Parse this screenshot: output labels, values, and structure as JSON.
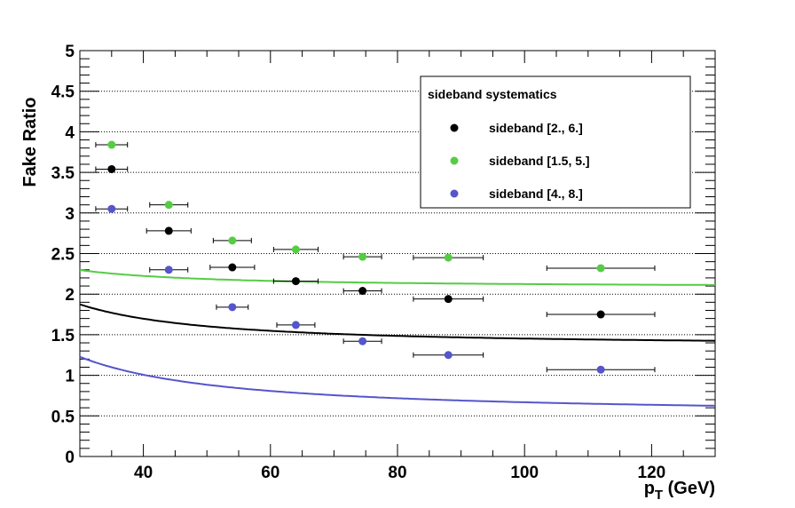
{
  "chart_data": {
    "type": "scatter",
    "title": "",
    "xlabel": "p_T (GeV)",
    "xlabel_main": "p",
    "xlabel_sub": "T",
    "xlabel_unit": " (GeV)",
    "ylabel": "Fake Ratio",
    "xlim": [
      30,
      130
    ],
    "ylim": [
      0,
      5
    ],
    "x_ticks": [
      40,
      60,
      80,
      100,
      120
    ],
    "y_ticks": [
      0,
      0.5,
      1,
      1.5,
      2,
      2.5,
      3,
      3.5,
      4,
      4.5,
      5
    ],
    "y_tick_labels": [
      "0",
      "0.5",
      "1",
      "1.5",
      "2",
      "2.5",
      "3",
      "3.5",
      "4",
      "4.5",
      "5"
    ],
    "x_tick_labels": [
      "40",
      "60",
      "80",
      "100",
      "120"
    ],
    "grid": "horizontal-dotted",
    "legend": {
      "title": "sideband systematics",
      "placement": "top-right"
    },
    "series": [
      {
        "name": "sideband [2., 6.]",
        "color": "#000000",
        "points": [
          {
            "x": 35,
            "y": 3.54,
            "xerr": 2.5
          },
          {
            "x": 44,
            "y": 2.78,
            "xerr": 3.5
          },
          {
            "x": 54,
            "y": 2.33,
            "xerr": 3.5
          },
          {
            "x": 64,
            "y": 2.16,
            "xerr": 3.5
          },
          {
            "x": 74.5,
            "y": 2.04,
            "xerr": 3.0
          },
          {
            "x": 88,
            "y": 1.94,
            "xerr": 5.5
          },
          {
            "x": 112,
            "y": 1.75,
            "xerr": 8.5
          }
        ],
        "fit": {
          "a": 1.37,
          "b": 19.0,
          "p": 1.5
        }
      },
      {
        "name": "sideband [1.5, 5.]",
        "color": "#55cc44",
        "points": [
          {
            "x": 35,
            "y": 3.84,
            "xerr": 2.5
          },
          {
            "x": 44,
            "y": 3.1,
            "xerr": 3.0
          },
          {
            "x": 54,
            "y": 2.66,
            "xerr": 3.0
          },
          {
            "x": 64,
            "y": 2.55,
            "xerr": 3.5
          },
          {
            "x": 74.5,
            "y": 2.46,
            "xerr": 3.0
          },
          {
            "x": 88,
            "y": 2.45,
            "xerr": 5.5
          },
          {
            "x": 112,
            "y": 2.32,
            "xerr": 8.5
          }
        ],
        "fit": {
          "a": 2.09,
          "b": 10.5,
          "p": 1.5
        }
      },
      {
        "name": "sideband [4., 8.]",
        "color": "#5555cc",
        "points": [
          {
            "x": 35,
            "y": 3.05,
            "xerr": 2.5
          },
          {
            "x": 44,
            "y": 2.3,
            "xerr": 3.0
          },
          {
            "x": 54,
            "y": 1.84,
            "xerr": 2.5
          },
          {
            "x": 64,
            "y": 1.62,
            "xerr": 3.0
          },
          {
            "x": 74.5,
            "y": 1.42,
            "xerr": 3.0
          },
          {
            "x": 88,
            "y": 1.25,
            "xerr": 5.5
          },
          {
            "x": 112,
            "y": 1.07,
            "xerr": 8.5
          }
        ],
        "fit": {
          "a": 0.52,
          "b": 23.0,
          "p": 1.3
        }
      }
    ]
  }
}
